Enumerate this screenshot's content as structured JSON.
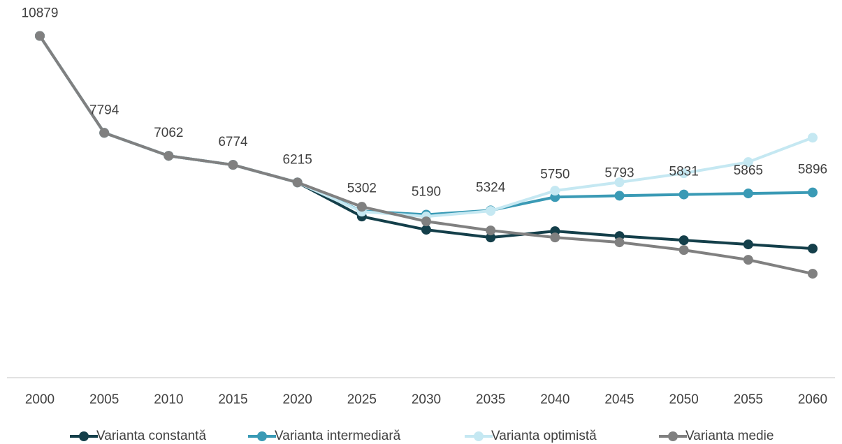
{
  "chart_data": {
    "type": "line",
    "categories": [
      "2000",
      "2005",
      "2010",
      "2015",
      "2020",
      "2025",
      "2030",
      "2035",
      "2040",
      "2045",
      "2050",
      "2055",
      "2060"
    ],
    "ylim": [
      0,
      12000
    ],
    "legend": "bottom",
    "label_series": 1,
    "series": [
      {
        "name": "Varianta constantă",
        "color": "#143f4a",
        "values": [
          10879,
          7794,
          7062,
          6774,
          6215,
          5130,
          4709,
          4464,
          4664,
          4509,
          4375,
          4242,
          4109
        ]
      },
      {
        "name": "Varianta intermediară",
        "color": "#3a9ab5",
        "values": [
          10879,
          7794,
          7062,
          6774,
          6215,
          5302,
          5190,
          5324,
          5750,
          5793,
          5831,
          5865,
          5896
        ]
      },
      {
        "name": "Varianta optimistă",
        "color": "#c5e8f2",
        "values": [
          10879,
          7794,
          7062,
          6774,
          6215,
          5286,
          5130,
          5308,
          5952,
          6219,
          6508,
          6863,
          7640
        ]
      },
      {
        "name": "Varianta medie",
        "color": "#808080",
        "values": [
          10879,
          7794,
          7062,
          6774,
          6215,
          5441,
          4975,
          4686,
          4464,
          4309,
          4064,
          3753,
          3309
        ]
      }
    ]
  }
}
